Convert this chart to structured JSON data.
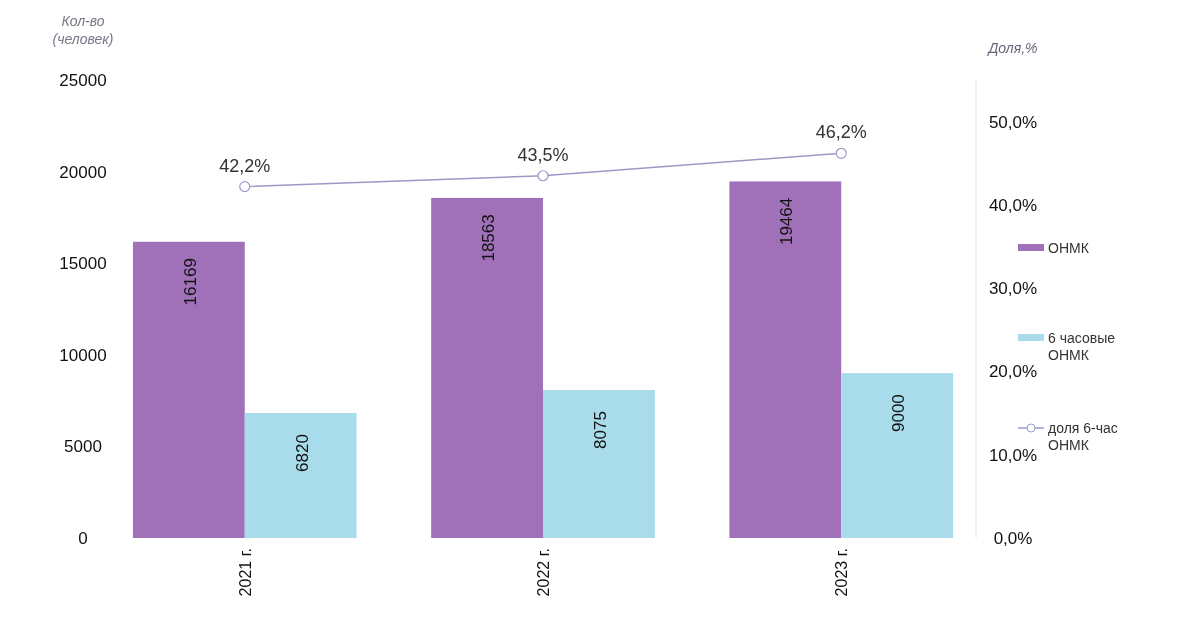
{
  "chart_data": {
    "type": "bar",
    "xlabel": null,
    "ylabel": "Кол-во (человек)",
    "y2label": "Доля,%",
    "categories": [
      "2021 г.",
      "2022 г.",
      "2023 г."
    ],
    "series": [
      {
        "name": "ОНМК",
        "color": "#a070b8",
        "values": [
          16169,
          18563,
          19464
        ]
      },
      {
        "name": "6 часовые ОНМК",
        "color": "#a8dcea",
        "values": [
          6820,
          8075,
          9000
        ]
      },
      {
        "name": "доля 6-час ОНМК",
        "type": "line",
        "axis": "y2",
        "color": "#9a9ac8",
        "marker": "circle",
        "values": [
          42.2,
          43.5,
          46.2
        ],
        "value_labels": [
          "42,2%",
          "43,5%",
          "46,2%"
        ]
      }
    ],
    "ylim": [
      0,
      25000
    ],
    "yticks": [
      0,
      5000,
      10000,
      15000,
      20000,
      25000
    ],
    "y2lim": [
      0,
      55
    ],
    "y2ticks": [
      {
        "value": 0,
        "label": "0,0%"
      },
      {
        "value": 10,
        "label": "10,0%"
      },
      {
        "value": 20,
        "label": "20,0%"
      },
      {
        "value": 30,
        "label": "30,0%"
      },
      {
        "value": 40,
        "label": "40,0%"
      },
      {
        "value": 50,
        "label": "50,0%"
      }
    ],
    "data_labels": true,
    "grid": false,
    "legend": "right"
  }
}
